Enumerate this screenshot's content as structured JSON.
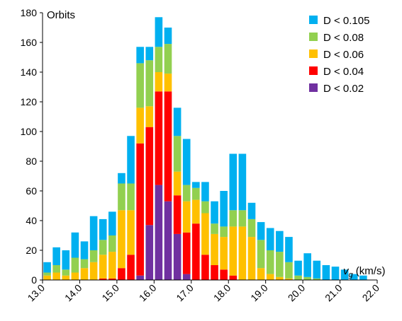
{
  "chart_data": {
    "type": "bar",
    "stacked": true,
    "title": "",
    "ylabel": "Orbits",
    "xlabel": {
      "symbol": "v",
      "subscript": "g",
      "unit": "(km/s)"
    },
    "ylim": [
      0,
      180
    ],
    "yticks": [
      0,
      20,
      40,
      60,
      80,
      100,
      120,
      140,
      160,
      180
    ],
    "xlim": [
      13.0,
      22.0
    ],
    "xticks": [
      "13.0",
      "14.0",
      "15.0",
      "16.0",
      "17.0",
      "18.0",
      "19.0",
      "20.0",
      "21.0",
      "22.0"
    ],
    "bin_width": 0.25,
    "grid": false,
    "legend_position": "top-right",
    "x": [
      13.125,
      13.375,
      13.625,
      13.875,
      14.125,
      14.375,
      14.625,
      14.875,
      15.125,
      15.375,
      15.625,
      15.875,
      16.125,
      16.375,
      16.625,
      16.875,
      17.125,
      17.375,
      17.625,
      17.875,
      18.125,
      18.375,
      18.625,
      18.875,
      19.125,
      19.375,
      19.625,
      19.875,
      20.125,
      20.375,
      20.625,
      20.875,
      21.125,
      21.375,
      21.625,
      21.875
    ],
    "series": [
      {
        "name": "D < 0.02",
        "color": "#7030A0",
        "values": [
          0,
          0,
          0,
          0,
          0,
          0,
          0,
          0,
          0,
          0,
          3,
          37,
          64,
          53,
          31,
          4,
          0,
          0,
          0,
          0,
          0,
          0,
          0,
          0,
          0,
          0,
          0,
          0,
          0,
          0,
          0,
          0,
          0,
          0,
          0,
          0
        ]
      },
      {
        "name": "D < 0.04",
        "color": "#FF0000",
        "values": [
          0,
          0,
          0,
          0,
          0,
          0,
          1,
          1,
          8,
          17,
          89,
          66,
          63,
          74,
          26,
          28,
          38,
          17,
          10,
          7,
          3,
          0,
          0,
          0,
          0,
          0,
          0,
          0,
          0,
          0,
          0,
          0,
          0,
          0,
          0,
          0
        ]
      },
      {
        "name": "D < 0.06",
        "color": "#FFC000",
        "values": [
          3,
          5,
          3,
          5,
          8,
          12,
          16,
          18,
          39,
          30,
          24,
          14,
          13,
          12,
          16,
          21,
          16,
          28,
          21,
          22,
          33,
          36,
          29,
          8,
          4,
          2,
          1,
          0,
          0,
          0,
          0,
          0,
          0,
          0,
          0,
          0
        ]
      },
      {
        "name": "D < 0.08",
        "color": "#92D050",
        "values": [
          2,
          5,
          4,
          10,
          6,
          8,
          10,
          11,
          18,
          18,
          30,
          31,
          17,
          20,
          24,
          11,
          8,
          8,
          7,
          7,
          11,
          11,
          12,
          19,
          16,
          17,
          11,
          3,
          2,
          1,
          0,
          0,
          0,
          0,
          0,
          0
        ]
      },
      {
        "name": "D < 0.105",
        "color": "#00B0F0",
        "values": [
          7,
          12,
          13,
          17,
          12,
          23,
          14,
          16,
          7,
          32,
          11,
          9,
          20,
          11,
          19,
          31,
          4,
          13,
          15,
          24,
          38,
          38,
          11,
          12,
          15,
          14,
          17,
          10,
          16,
          12,
          10,
          9,
          7,
          4,
          3,
          0
        ]
      }
    ]
  }
}
